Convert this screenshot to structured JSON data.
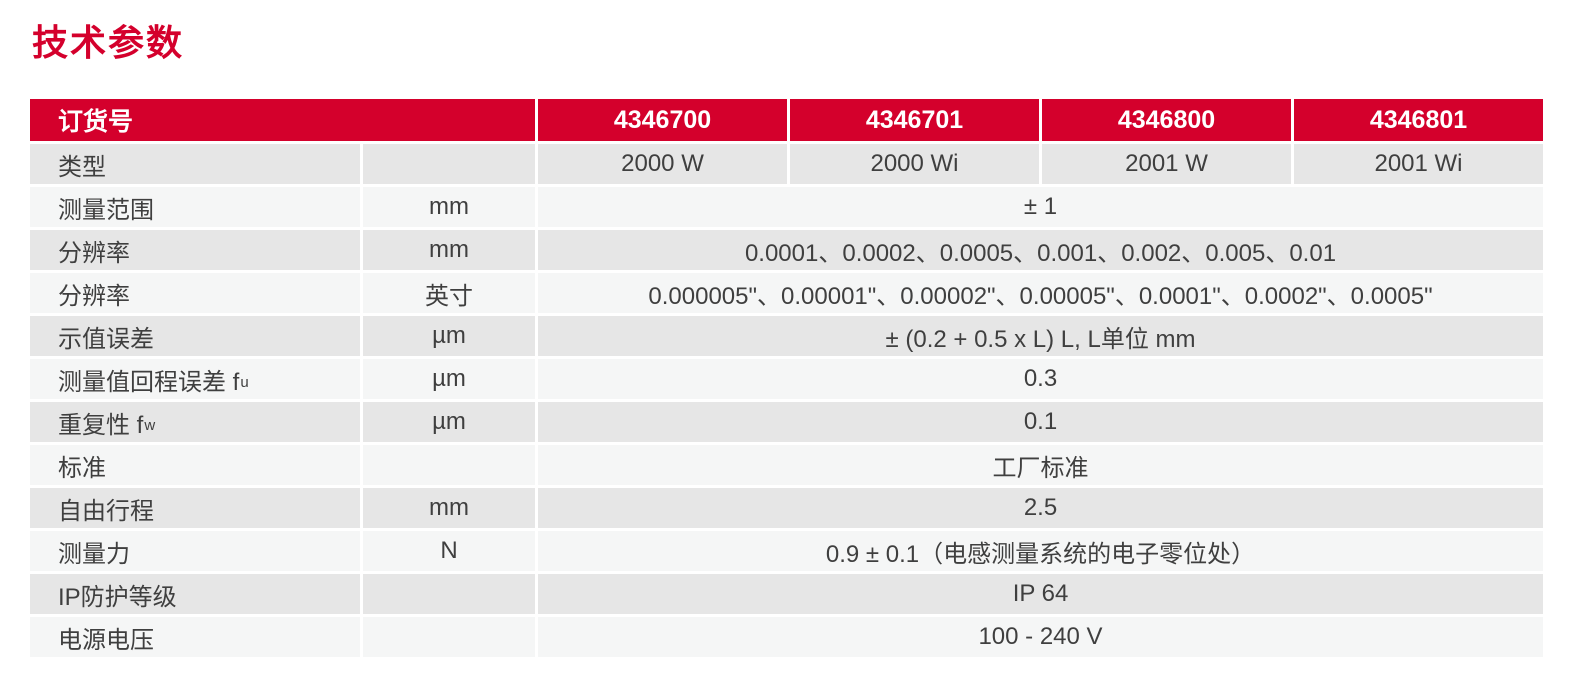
{
  "page": {
    "title": "技术参数"
  },
  "colors": {
    "brand_red": "#d4002c",
    "row_dark": "#e6e6e6",
    "row_light": "#f5f6f6",
    "text": "#3f3f3f",
    "header_text": "#ffffff"
  },
  "table": {
    "header": {
      "label": "订货号",
      "order_numbers": [
        "4346700",
        "4346701",
        "4346800",
        "4346801"
      ]
    },
    "type_row": {
      "label": "类型",
      "unit": "",
      "values": [
        "2000 W",
        "2000 Wi",
        "2001 W",
        "2001 Wi"
      ]
    },
    "rows": [
      {
        "label": "测量范围",
        "label_sub": "",
        "unit": "mm",
        "value": "± 1"
      },
      {
        "label": "分辨率",
        "label_sub": "",
        "unit": "mm",
        "value": "0.0001、0.0002、0.0005、0.001、0.002、0.005、0.01"
      },
      {
        "label": "分辨率",
        "label_sub": "",
        "unit": "英寸",
        "value": "0.000005\"、0.00001\"、0.00002\"、0.00005\"、0.0001\"、0.0002\"、0.0005\""
      },
      {
        "label": "示值误差",
        "label_sub": "",
        "unit": "µm",
        "value": "± (0.2 + 0.5 x L) L, L单位 mm"
      },
      {
        "label": "测量值回程误差 f",
        "label_sub": "u",
        "unit": "µm",
        "value": "0.3"
      },
      {
        "label": "重复性 f",
        "label_sub": "w",
        "unit": "µm",
        "value": "0.1"
      },
      {
        "label": "标准",
        "label_sub": "",
        "unit": "",
        "value": "工厂标准"
      },
      {
        "label": "自由行程",
        "label_sub": "",
        "unit": "mm",
        "value": "2.5"
      },
      {
        "label": "测量力",
        "label_sub": "",
        "unit": "N",
        "value": "0.9 ± 0.1（电感测量系统的电子零位处）"
      },
      {
        "label": "IP防护等级",
        "label_sub": "",
        "unit": "",
        "value": "IP 64"
      },
      {
        "label": "电源电压",
        "label_sub": "",
        "unit": "",
        "value": "100 - 240 V"
      }
    ]
  }
}
